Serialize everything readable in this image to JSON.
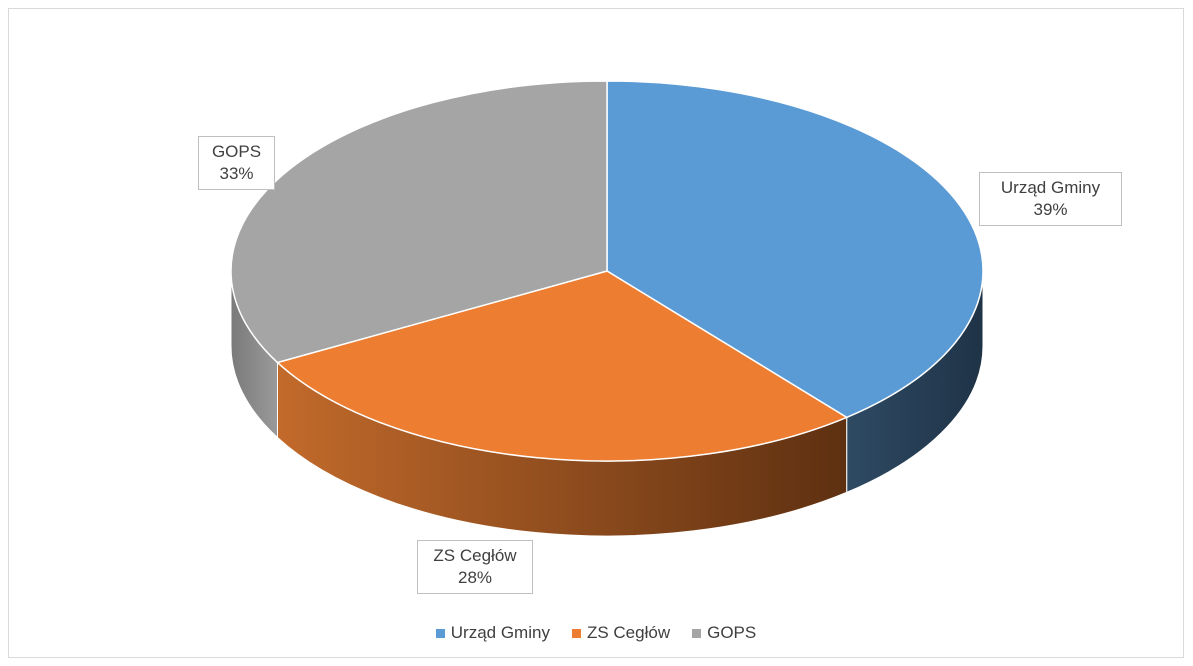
{
  "chart_data": {
    "type": "pie",
    "title": "",
    "categories": [
      "Urząd Gminy",
      "ZS Cegłów",
      "GOPS"
    ],
    "values": [
      39,
      28,
      33
    ],
    "value_labels": [
      "39%",
      "28%",
      "33%"
    ],
    "colors": [
      "#5b9bd5",
      "#ed7d31",
      "#a5a5a5"
    ],
    "style": "3d",
    "legend_position": "bottom",
    "data_labels": "category and percentage, outside, boxed"
  }
}
